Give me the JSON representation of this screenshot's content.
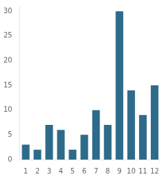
{
  "chart_data": {
    "type": "bar",
    "categories": [
      "1",
      "2",
      "3",
      "4",
      "5",
      "6",
      "7",
      "8",
      "9",
      "10",
      "11",
      "12"
    ],
    "values": [
      3,
      2,
      7,
      6,
      2,
      5,
      10,
      7,
      30,
      14,
      9,
      15
    ],
    "color": "#2e6b8a",
    "ylim": [
      0,
      31
    ],
    "yticks": [
      0,
      5,
      10,
      15,
      20,
      25,
      30
    ],
    "grid": false
  }
}
